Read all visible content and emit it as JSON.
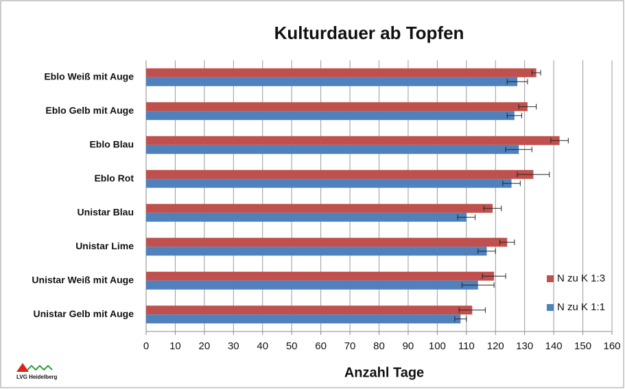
{
  "chart_data": {
    "type": "hbar",
    "title": "Kulturdauer ab Topfen",
    "x_label": "Anzahl Tage",
    "categories": [
      "Eblo Weiß mit Auge",
      "Eblo Gelb mit Auge",
      "Eblo Blau",
      "Eblo Rot",
      "Unistar Blau",
      "Unistar Lime",
      "Unistar Weiß mit Auge",
      "Unistar Gelb mit Auge"
    ],
    "series": [
      {
        "name": "N zu K 1:3",
        "color": "#c0504d",
        "values": [
          134,
          131,
          142,
          133,
          119,
          124,
          119.5,
          112
        ],
        "errors": [
          1.5,
          3,
          3,
          5.5,
          3,
          2.5,
          4,
          4.5
        ]
      },
      {
        "name": "N zu K 1:1",
        "color": "#4f81bd",
        "values": [
          127.5,
          126.5,
          128,
          125.5,
          110,
          117,
          114,
          108
        ],
        "errors": [
          3.5,
          2.5,
          4.5,
          3,
          3,
          3,
          5.5,
          2
        ]
      }
    ],
    "xlim": [
      0,
      160
    ],
    "xticks": [
      0,
      10,
      20,
      30,
      40,
      50,
      60,
      70,
      80,
      90,
      100,
      110,
      120,
      130,
      140,
      150,
      160
    ],
    "grid": true,
    "legend": "right",
    "logo": "LVG Heidelberg"
  }
}
